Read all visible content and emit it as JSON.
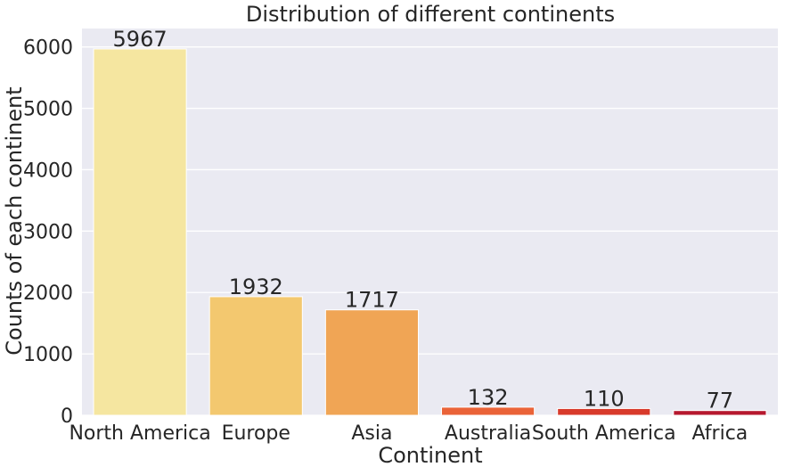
{
  "chart_data": {
    "type": "bar",
    "title": "Distribution of different continents",
    "xlabel": "Continent",
    "ylabel": "Counts of each continent",
    "categories": [
      "North America",
      "Europe",
      "Asia",
      "Australia",
      "South America",
      "Africa"
    ],
    "values": [
      5967,
      1932,
      1717,
      132,
      110,
      77
    ],
    "data_labels": [
      "5967",
      "1932",
      "1717",
      "132",
      "110",
      "77"
    ],
    "colors": [
      "#f5e6a0",
      "#f3c86f",
      "#f0a555",
      "#ea6338",
      "#d83a2b",
      "#b6182e"
    ],
    "ylim": [
      0,
      6300
    ],
    "yticks": [
      0,
      1000,
      2000,
      3000,
      4000,
      5000,
      6000
    ],
    "ytick_labels": [
      "0",
      "1000",
      "2000",
      "3000",
      "4000",
      "5000",
      "6000"
    ],
    "grid": true,
    "background": "#eaeaf2",
    "grid_color": "#ffffff"
  }
}
